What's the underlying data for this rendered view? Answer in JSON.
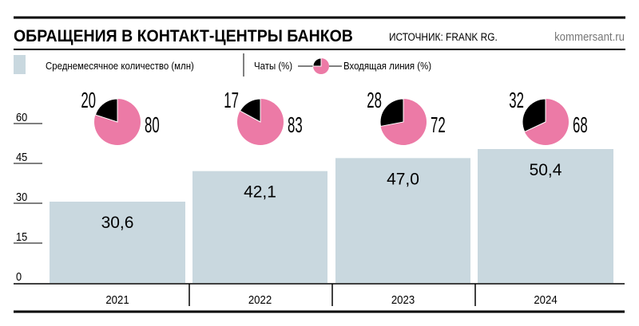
{
  "header": {
    "title": "ОБРАЩЕНИЯ В КОНТАКТ-ЦЕНТРЫ БАНКОВ",
    "source": "ИСТОЧНИК: FRANK RG.",
    "site": "kommersant.ru"
  },
  "legend": {
    "bars_label": "Среднемесячное количество (млн)",
    "chats_label": "Чаты (%)",
    "inbound_label": "Входящая линия (%)"
  },
  "colors": {
    "bar": "#c9d8df",
    "inbound": "#ec7aa6",
    "chats": "#000000"
  },
  "chart_data": {
    "type": "bar",
    "categories": [
      "2021",
      "2022",
      "2023",
      "2024"
    ],
    "values": [
      30.6,
      42.1,
      47.0,
      50.4
    ],
    "value_labels": [
      "30,6",
      "42,1",
      "47,0",
      "50,4"
    ],
    "ylim": [
      0,
      60
    ],
    "yticks": [
      "0",
      "15",
      "30",
      "45",
      "60"
    ],
    "ytick_values": [
      0,
      15,
      30,
      45,
      60
    ],
    "series_name": "Среднемесячное количество (млн)",
    "pies": [
      {
        "chats": 20,
        "inbound": 80
      },
      {
        "chats": 17,
        "inbound": 83
      },
      {
        "chats": 28,
        "inbound": 72
      },
      {
        "chats": 32,
        "inbound": 68
      }
    ]
  }
}
